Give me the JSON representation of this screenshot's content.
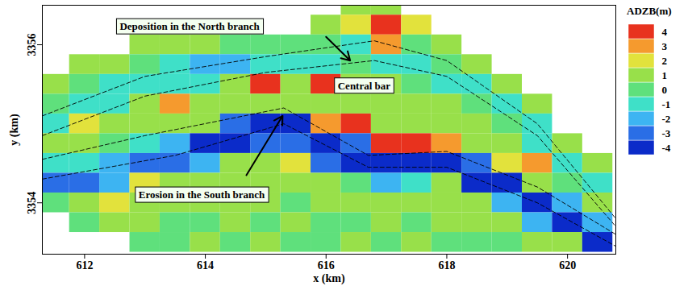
{
  "chart_data": {
    "type": "heatmap",
    "x_label": "x (km)",
    "y_label": "y (km)",
    "xlim": [
      611.3,
      620.8
    ],
    "xticks": [
      612,
      614,
      616,
      618,
      620
    ],
    "ylim": [
      3353.35,
      3356.5
    ],
    "yticks": [
      3354,
      3356
    ],
    "x": [
      611.5,
      612,
      612.5,
      613,
      613.5,
      614,
      614.5,
      615,
      615.5,
      616,
      616.5,
      617,
      617.5,
      618,
      618.5,
      619,
      619.5,
      620,
      620.5
    ],
    "y": [
      3356.5,
      3356.25,
      3356,
      3355.75,
      3355.5,
      3355.25,
      3355,
      3354.75,
      3354.5,
      3354.25,
      3354,
      3353.75,
      3353.5
    ],
    "z": [
      [
        null,
        null,
        null,
        null,
        1,
        0,
        -1,
        1,
        -1,
        -3,
        0,
        null,
        null
      ],
      [
        null,
        null,
        null,
        1,
        0,
        -1,
        2,
        1,
        -1,
        -3,
        1,
        0,
        null
      ],
      [
        null,
        null,
        null,
        1,
        -1,
        -1,
        1,
        0,
        -2,
        -2,
        2,
        1,
        null
      ],
      [
        null,
        null,
        1,
        0,
        -1,
        1,
        1,
        -1,
        -3,
        2,
        1,
        1,
        0
      ],
      [
        null,
        null,
        1,
        -1,
        -1,
        3,
        1,
        -2,
        -3,
        1,
        1,
        0,
        0
      ],
      [
        null,
        null,
        1,
        -2,
        -1,
        1,
        1,
        -4,
        -2,
        1,
        1,
        0,
        1
      ],
      [
        null,
        null,
        0,
        -2,
        1,
        1,
        -3,
        -4,
        1,
        1,
        1,
        1,
        0
      ],
      [
        null,
        null,
        0,
        -1,
        4,
        1,
        -4,
        -3,
        1,
        1,
        1,
        0,
        1
      ],
      [
        null,
        null,
        0,
        -1,
        1,
        1,
        -4,
        -3,
        2,
        1,
        0,
        1,
        0
      ],
      [
        null,
        1,
        0,
        -1,
        4,
        1,
        3,
        -4,
        -3,
        1,
        1,
        0,
        0
      ],
      [
        1,
        2,
        -1,
        0,
        1,
        1,
        4,
        -3,
        -4,
        0,
        1,
        0,
        1
      ],
      [
        1,
        4,
        3,
        -1,
        1,
        1,
        1,
        4,
        -4,
        -2,
        1,
        1,
        0
      ],
      [
        null,
        2,
        0,
        -1,
        0,
        1,
        1,
        4,
        -4,
        -1,
        1,
        0,
        1
      ],
      [
        null,
        null,
        1,
        0,
        -1,
        1,
        1,
        3,
        -4,
        1,
        1,
        1,
        0
      ],
      [
        null,
        null,
        null,
        1,
        -1,
        0,
        1,
        1,
        -3,
        -4,
        1,
        1,
        0
      ],
      [
        null,
        null,
        null,
        null,
        1,
        -1,
        0,
        1,
        2,
        -4,
        -2,
        1,
        0
      ],
      [
        null,
        null,
        null,
        null,
        null,
        1,
        -1,
        -1,
        3,
        1,
        -4,
        -2,
        1
      ],
      [
        null,
        null,
        null,
        null,
        null,
        null,
        null,
        1,
        -1,
        0,
        -2,
        -4,
        1
      ],
      [
        null,
        null,
        null,
        null,
        null,
        null,
        null,
        null,
        1,
        -1,
        1,
        -2,
        -4
      ]
    ],
    "colorbar": {
      "label": "ADZB(m)",
      "range": [
        -4,
        4
      ],
      "ticks": [
        -4,
        -3,
        -2,
        -1,
        0,
        1,
        2,
        3,
        4
      ]
    },
    "streamlines": [
      [
        [
          611.3,
          3354.55
        ],
        [
          613,
          3354.85
        ],
        [
          615.3,
          3355.2
        ],
        [
          616.7,
          3354.6
        ],
        [
          618,
          3354.65
        ],
        [
          619.5,
          3354.2
        ],
        [
          620.8,
          3353.6
        ]
      ],
      [
        [
          611.3,
          3354.3
        ],
        [
          613.5,
          3354.6
        ],
        [
          615.3,
          3355
        ],
        [
          616.7,
          3354.45
        ],
        [
          618,
          3354.45
        ],
        [
          619.5,
          3354
        ],
        [
          620.8,
          3353.45
        ]
      ],
      [
        [
          611.3,
          3355.1
        ],
        [
          613,
          3355.6
        ],
        [
          615,
          3355.85
        ],
        [
          616.8,
          3356.05
        ],
        [
          618,
          3355.8
        ],
        [
          619.5,
          3355
        ],
        [
          620.8,
          3353.8
        ]
      ],
      [
        [
          611.3,
          3354.85
        ],
        [
          613,
          3355.35
        ],
        [
          615,
          3355.65
        ],
        [
          616.8,
          3355.8
        ],
        [
          618,
          3355.6
        ],
        [
          619.5,
          3354.85
        ],
        [
          620.8,
          3353.7
        ]
      ]
    ],
    "line_style": "dashed",
    "annotations": [
      {
        "text": "Deposition in the North branch",
        "x": 613.74,
        "y": 3356.23,
        "arrow_from": [
          616.0,
          3356.1
        ],
        "arrow_to": [
          616.4,
          3355.8
        ]
      },
      {
        "text": "Central bar",
        "x": 616.63,
        "y": 3355.48
      },
      {
        "text": "Erosion in the South branch",
        "x": 613.94,
        "y": 3354.1,
        "arrow_from": [
          614.68,
          3354.35
        ],
        "arrow_to": [
          615.28,
          3355.1
        ]
      }
    ]
  }
}
